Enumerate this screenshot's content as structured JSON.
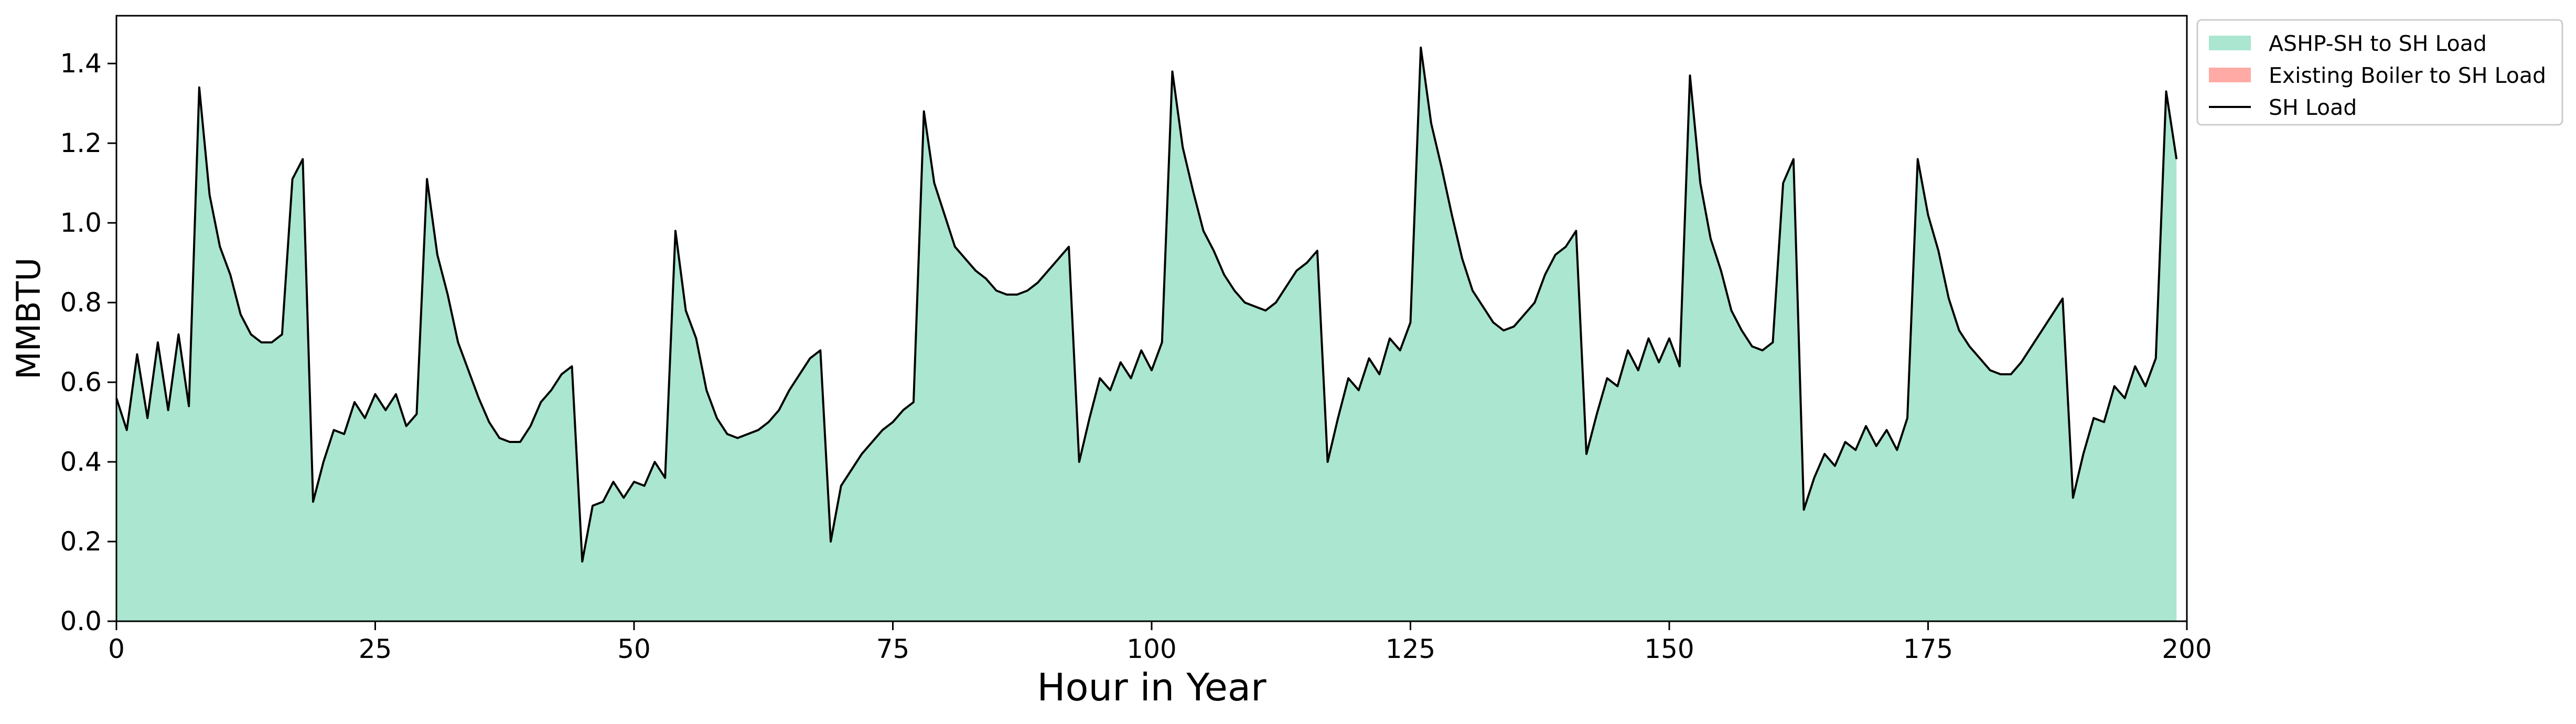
{
  "chart_data": {
    "type": "area",
    "title": "",
    "xlabel": "Hour in Year",
    "ylabel": "MMBTU",
    "xlim": [
      0,
      200
    ],
    "ylim": [
      0.0,
      1.52
    ],
    "xticks": [
      0,
      25,
      50,
      75,
      100,
      125,
      150,
      175,
      200
    ],
    "xtick_labels": [
      "0",
      "25",
      "50",
      "75",
      "100",
      "125",
      "150",
      "175",
      "200"
    ],
    "yticks": [
      0.0,
      0.2,
      0.4,
      0.6,
      0.8,
      1.0,
      1.2,
      1.4
    ],
    "ytick_labels": [
      "0.0",
      "0.2",
      "0.4",
      "0.6",
      "0.8",
      "1.0",
      "1.2",
      "1.4"
    ],
    "grid": false,
    "legend_position": "outside-top-right",
    "x": [
      0,
      1,
      2,
      3,
      4,
      5,
      6,
      7,
      8,
      9,
      10,
      11,
      12,
      13,
      14,
      15,
      16,
      17,
      18,
      19,
      20,
      21,
      22,
      23,
      24,
      25,
      26,
      27,
      28,
      29,
      30,
      31,
      32,
      33,
      34,
      35,
      36,
      37,
      38,
      39,
      40,
      41,
      42,
      43,
      44,
      45,
      46,
      47,
      48,
      49,
      50,
      51,
      52,
      53,
      54,
      55,
      56,
      57,
      58,
      59,
      60,
      61,
      62,
      63,
      64,
      65,
      66,
      67,
      68,
      69,
      70,
      71,
      72,
      73,
      74,
      75,
      76,
      77,
      78,
      79,
      80,
      81,
      82,
      83,
      84,
      85,
      86,
      87,
      88,
      89,
      90,
      91,
      92,
      93,
      94,
      95,
      96,
      97,
      98,
      99,
      100,
      101,
      102,
      103,
      104,
      105,
      106,
      107,
      108,
      109,
      110,
      111,
      112,
      113,
      114,
      115,
      116,
      117,
      118,
      119,
      120,
      121,
      122,
      123,
      124,
      125,
      126,
      127,
      128,
      129,
      130,
      131,
      132,
      133,
      134,
      135,
      136,
      137,
      138,
      139,
      140,
      141,
      142,
      143,
      144,
      145,
      146,
      147,
      148,
      149,
      150,
      151,
      152,
      153,
      154,
      155,
      156,
      157,
      158,
      159,
      160,
      161,
      162,
      163,
      164,
      165,
      166,
      167,
      168,
      169,
      170,
      171,
      172,
      173,
      174,
      175,
      176,
      177,
      178,
      179,
      180,
      181,
      182,
      183,
      184,
      185,
      186,
      187,
      188,
      189,
      190,
      191,
      192,
      193,
      194,
      195,
      196,
      197,
      198,
      199
    ],
    "series": [
      {
        "name": "ASHP-SH to SH Load",
        "kind": "area",
        "color": "#aae6d0",
        "values": [
          0.56,
          0.48,
          0.67,
          0.51,
          0.7,
          0.53,
          0.72,
          0.54,
          1.34,
          1.07,
          0.94,
          0.87,
          0.77,
          0.72,
          0.7,
          0.7,
          0.72,
          1.11,
          1.16,
          0.3,
          0.4,
          0.48,
          0.47,
          0.55,
          0.51,
          0.57,
          0.53,
          0.57,
          0.49,
          0.52,
          1.11,
          0.92,
          0.82,
          0.7,
          0.63,
          0.56,
          0.5,
          0.46,
          0.45,
          0.45,
          0.49,
          0.55,
          0.58,
          0.62,
          0.64,
          0.15,
          0.29,
          0.3,
          0.35,
          0.31,
          0.35,
          0.34,
          0.4,
          0.36,
          0.98,
          0.78,
          0.71,
          0.58,
          0.51,
          0.47,
          0.46,
          0.47,
          0.48,
          0.5,
          0.53,
          0.58,
          0.62,
          0.66,
          0.68,
          0.2,
          0.34,
          0.38,
          0.42,
          0.45,
          0.48,
          0.5,
          0.53,
          0.55,
          1.28,
          1.1,
          1.02,
          0.94,
          0.91,
          0.88,
          0.86,
          0.83,
          0.82,
          0.82,
          0.83,
          0.85,
          0.88,
          0.91,
          0.94,
          0.4,
          0.51,
          0.61,
          0.58,
          0.65,
          0.61,
          0.68,
          0.63,
          0.7,
          1.38,
          1.19,
          1.08,
          0.98,
          0.93,
          0.87,
          0.83,
          0.8,
          0.79,
          0.78,
          0.8,
          0.84,
          0.88,
          0.9,
          0.93,
          0.4,
          0.51,
          0.61,
          0.58,
          0.66,
          0.62,
          0.71,
          0.68,
          0.75,
          1.44,
          1.25,
          1.14,
          1.02,
          0.91,
          0.83,
          0.79,
          0.75,
          0.73,
          0.74,
          0.77,
          0.8,
          0.87,
          0.92,
          0.94,
          0.98,
          0.42,
          0.52,
          0.61,
          0.59,
          0.68,
          0.63,
          0.71,
          0.65,
          0.71,
          0.64,
          1.37,
          1.1,
          0.96,
          0.88,
          0.78,
          0.73,
          0.69,
          0.68,
          0.7,
          1.1,
          1.16,
          0.28,
          0.36,
          0.42,
          0.39,
          0.45,
          0.43,
          0.49,
          0.44,
          0.48,
          0.43,
          0.51,
          1.16,
          1.02,
          0.93,
          0.81,
          0.73,
          0.69,
          0.66,
          0.63,
          0.62,
          0.62,
          0.65,
          0.69,
          0.73,
          0.77,
          0.81,
          0.31,
          0.42,
          0.51,
          0.5,
          0.59,
          0.56,
          0.64,
          0.59,
          0.66,
          1.33,
          1.16
        ]
      },
      {
        "name": "Existing Boiler to SH Load",
        "kind": "area",
        "color": "#ffaaa5",
        "values": [
          0,
          0,
          0,
          0,
          0,
          0,
          0,
          0,
          0,
          0,
          0,
          0,
          0,
          0,
          0,
          0,
          0,
          0,
          0,
          0,
          0,
          0,
          0,
          0,
          0,
          0,
          0,
          0,
          0,
          0,
          0,
          0,
          0,
          0,
          0,
          0,
          0,
          0,
          0,
          0,
          0,
          0,
          0,
          0,
          0,
          0,
          0,
          0,
          0,
          0,
          0,
          0,
          0,
          0,
          0,
          0,
          0,
          0,
          0,
          0,
          0,
          0,
          0,
          0,
          0,
          0,
          0,
          0,
          0,
          0,
          0,
          0,
          0,
          0,
          0,
          0,
          0,
          0,
          0,
          0,
          0,
          0,
          0,
          0,
          0,
          0,
          0,
          0,
          0,
          0,
          0,
          0,
          0,
          0,
          0,
          0,
          0,
          0,
          0,
          0,
          0,
          0,
          0,
          0,
          0,
          0,
          0,
          0,
          0,
          0,
          0,
          0,
          0,
          0,
          0,
          0,
          0,
          0,
          0,
          0,
          0,
          0,
          0,
          0,
          0,
          0,
          0,
          0,
          0,
          0,
          0,
          0,
          0,
          0,
          0,
          0,
          0,
          0,
          0,
          0,
          0,
          0,
          0,
          0,
          0,
          0,
          0,
          0,
          0,
          0,
          0,
          0,
          0,
          0,
          0,
          0,
          0,
          0,
          0,
          0,
          0,
          0,
          0,
          0,
          0,
          0,
          0,
          0,
          0,
          0,
          0,
          0,
          0,
          0,
          0,
          0,
          0,
          0,
          0,
          0,
          0,
          0,
          0,
          0,
          0,
          0,
          0,
          0,
          0,
          0,
          0,
          0,
          0,
          0,
          0,
          0,
          0,
          0,
          0,
          0
        ]
      },
      {
        "name": "SH Load",
        "kind": "line",
        "color": "#000000",
        "values": [
          0.56,
          0.48,
          0.67,
          0.51,
          0.7,
          0.53,
          0.72,
          0.54,
          1.34,
          1.07,
          0.94,
          0.87,
          0.77,
          0.72,
          0.7,
          0.7,
          0.72,
          1.11,
          1.16,
          0.3,
          0.4,
          0.48,
          0.47,
          0.55,
          0.51,
          0.57,
          0.53,
          0.57,
          0.49,
          0.52,
          1.11,
          0.92,
          0.82,
          0.7,
          0.63,
          0.56,
          0.5,
          0.46,
          0.45,
          0.45,
          0.49,
          0.55,
          0.58,
          0.62,
          0.64,
          0.15,
          0.29,
          0.3,
          0.35,
          0.31,
          0.35,
          0.34,
          0.4,
          0.36,
          0.98,
          0.78,
          0.71,
          0.58,
          0.51,
          0.47,
          0.46,
          0.47,
          0.48,
          0.5,
          0.53,
          0.58,
          0.62,
          0.66,
          0.68,
          0.2,
          0.34,
          0.38,
          0.42,
          0.45,
          0.48,
          0.5,
          0.53,
          0.55,
          1.28,
          1.1,
          1.02,
          0.94,
          0.91,
          0.88,
          0.86,
          0.83,
          0.82,
          0.82,
          0.83,
          0.85,
          0.88,
          0.91,
          0.94,
          0.4,
          0.51,
          0.61,
          0.58,
          0.65,
          0.61,
          0.68,
          0.63,
          0.7,
          1.38,
          1.19,
          1.08,
          0.98,
          0.93,
          0.87,
          0.83,
          0.8,
          0.79,
          0.78,
          0.8,
          0.84,
          0.88,
          0.9,
          0.93,
          0.4,
          0.51,
          0.61,
          0.58,
          0.66,
          0.62,
          0.71,
          0.68,
          0.75,
          1.44,
          1.25,
          1.14,
          1.02,
          0.91,
          0.83,
          0.79,
          0.75,
          0.73,
          0.74,
          0.77,
          0.8,
          0.87,
          0.92,
          0.94,
          0.98,
          0.42,
          0.52,
          0.61,
          0.59,
          0.68,
          0.63,
          0.71,
          0.65,
          0.71,
          0.64,
          1.37,
          1.1,
          0.96,
          0.88,
          0.78,
          0.73,
          0.69,
          0.68,
          0.7,
          1.1,
          1.16,
          0.28,
          0.36,
          0.42,
          0.39,
          0.45,
          0.43,
          0.49,
          0.44,
          0.48,
          0.43,
          0.51,
          1.16,
          1.02,
          0.93,
          0.81,
          0.73,
          0.69,
          0.66,
          0.63,
          0.62,
          0.62,
          0.65,
          0.69,
          0.73,
          0.77,
          0.81,
          0.31,
          0.42,
          0.51,
          0.5,
          0.59,
          0.56,
          0.64,
          0.59,
          0.66,
          1.33,
          1.16
        ]
      }
    ]
  }
}
